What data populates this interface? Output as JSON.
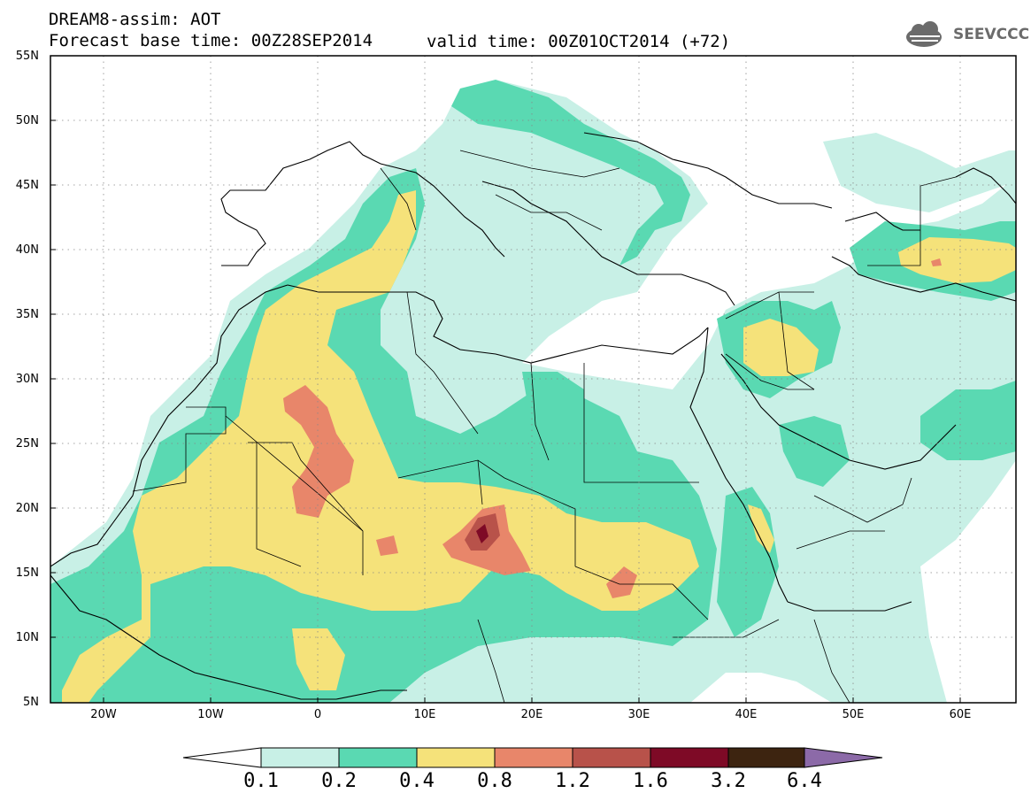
{
  "header": {
    "title_line1": "DREAM8-assim: AOT",
    "title_line2": "Forecast base time: 00Z28SEP2014",
    "valid_time": "valid time: 00Z01OCT2014 (+72)",
    "logo_text": "SEEVCCC",
    "logo_icon": "cloud-icon"
  },
  "map": {
    "lat_labels": [
      "55N",
      "50N",
      "45N",
      "40N",
      "35N",
      "30N",
      "25N",
      "20N",
      "15N",
      "10N",
      "5N"
    ],
    "lon_labels": [
      "20W",
      "10W",
      "0",
      "10E",
      "20E",
      "30E",
      "40E",
      "50E",
      "60E"
    ]
  },
  "colorbar": {
    "labels": [
      "0.1",
      "0.2",
      "0.4",
      "0.8",
      "1.2",
      "1.6",
      "3.2",
      "6.4"
    ],
    "colors": [
      "#ffffff",
      "#c8f0e6",
      "#5ad9b2",
      "#f5e27a",
      "#e8866a",
      "#b8524a",
      "#7e0a26",
      "#3d2410",
      "#8c6aa8"
    ]
  }
}
